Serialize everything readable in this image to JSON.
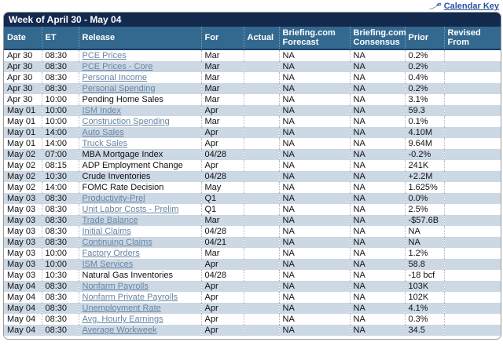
{
  "calendar_key": {
    "label": "Calendar Key"
  },
  "week_title": "Week of April 30 - May 04",
  "colors": {
    "title_bar": "#14294E",
    "header": "#33688F",
    "alt_row": "#CCD8E4",
    "link": "#6685A3",
    "key_link": "#2a52a2",
    "key_icon": "#2b59a8"
  },
  "columns": [
    {
      "key": "date",
      "label": "Date"
    },
    {
      "key": "et",
      "label": "ET"
    },
    {
      "key": "release",
      "label": "Release"
    },
    {
      "key": "for",
      "label": "For"
    },
    {
      "key": "actual",
      "label": "Actual"
    },
    {
      "key": "forecast",
      "label": "Briefing.com Forecast"
    },
    {
      "key": "consensus",
      "label": "Briefing.com Consensus"
    },
    {
      "key": "prior",
      "label": "Prior"
    },
    {
      "key": "revised",
      "label": "Revised From"
    }
  ],
  "rows": [
    {
      "date": "Apr 30",
      "et": "08:30",
      "release": "PCE Prices",
      "is_link": true,
      "for": "Mar",
      "actual": "",
      "forecast": "NA",
      "consensus": "NA",
      "prior": "0.2%",
      "revised": ""
    },
    {
      "date": "Apr 30",
      "et": "08:30",
      "release": "PCE Prices - Core",
      "is_link": true,
      "for": "Mar",
      "actual": "",
      "forecast": "NA",
      "consensus": "NA",
      "prior": "0.2%",
      "revised": ""
    },
    {
      "date": "Apr 30",
      "et": "08:30",
      "release": "Personal Income",
      "is_link": true,
      "for": "Mar",
      "actual": "",
      "forecast": "NA",
      "consensus": "NA",
      "prior": "0.4%",
      "revised": ""
    },
    {
      "date": "Apr 30",
      "et": "08:30",
      "release": "Personal Spending",
      "is_link": true,
      "for": "Mar",
      "actual": "",
      "forecast": "NA",
      "consensus": "NA",
      "prior": "0.2%",
      "revised": ""
    },
    {
      "date": "Apr 30",
      "et": "10:00",
      "release": "Pending Home Sales",
      "is_link": false,
      "for": "Mar",
      "actual": "",
      "forecast": "NA",
      "consensus": "NA",
      "prior": "3.1%",
      "revised": ""
    },
    {
      "date": "May 01",
      "et": "10:00",
      "release": "ISM Index",
      "is_link": true,
      "for": "Apr",
      "actual": "",
      "forecast": "NA",
      "consensus": "NA",
      "prior": "59.3",
      "revised": ""
    },
    {
      "date": "May 01",
      "et": "10:00",
      "release": "Construction Spending",
      "is_link": true,
      "for": "Mar",
      "actual": "",
      "forecast": "NA",
      "consensus": "NA",
      "prior": "0.1%",
      "revised": ""
    },
    {
      "date": "May 01",
      "et": "14:00",
      "release": "Auto Sales",
      "is_link": true,
      "for": "Apr",
      "actual": "",
      "forecast": "NA",
      "consensus": "NA",
      "prior": "4.10M",
      "revised": ""
    },
    {
      "date": "May 01",
      "et": "14:00",
      "release": "Truck Sales",
      "is_link": true,
      "for": "Apr",
      "actual": "",
      "forecast": "NA",
      "consensus": "NA",
      "prior": "9.64M",
      "revised": ""
    },
    {
      "date": "May 02",
      "et": "07:00",
      "release": "MBA Mortgage Index",
      "is_link": false,
      "for": "04/28",
      "actual": "",
      "forecast": "NA",
      "consensus": "NA",
      "prior": "-0.2%",
      "revised": ""
    },
    {
      "date": "May 02",
      "et": "08:15",
      "release": "ADP Employment Change",
      "is_link": false,
      "for": "Apr",
      "actual": "",
      "forecast": "NA",
      "consensus": "NA",
      "prior": "241K",
      "revised": ""
    },
    {
      "date": "May 02",
      "et": "10:30",
      "release": "Crude Inventories",
      "is_link": false,
      "for": "04/28",
      "actual": "",
      "forecast": "NA",
      "consensus": "NA",
      "prior": "+2.2M",
      "revised": ""
    },
    {
      "date": "May 02",
      "et": "14:00",
      "release": "FOMC Rate Decision",
      "is_link": false,
      "for": "May",
      "actual": "",
      "forecast": "NA",
      "consensus": "NA",
      "prior": "1.625%",
      "revised": ""
    },
    {
      "date": "May 03",
      "et": "08:30",
      "release": "Productivity-Prel",
      "is_link": true,
      "for": "Q1",
      "actual": "",
      "forecast": "NA",
      "consensus": "NA",
      "prior": "0.0%",
      "revised": ""
    },
    {
      "date": "May 03",
      "et": "08:30",
      "release": "Unit Labor Costs - Prelim",
      "is_link": true,
      "for": "Q1",
      "actual": "",
      "forecast": "NA",
      "consensus": "NA",
      "prior": "2.5%",
      "revised": ""
    },
    {
      "date": "May 03",
      "et": "08:30",
      "release": "Trade Balance",
      "is_link": true,
      "for": "Mar",
      "actual": "",
      "forecast": "NA",
      "consensus": "NA",
      "prior": "-$57.6B",
      "revised": ""
    },
    {
      "date": "May 03",
      "et": "08:30",
      "release": "Initial Claims",
      "is_link": true,
      "for": "04/28",
      "actual": "",
      "forecast": "NA",
      "consensus": "NA",
      "prior": "NA",
      "revised": ""
    },
    {
      "date": "May 03",
      "et": "08:30",
      "release": "Continuing Claims",
      "is_link": true,
      "for": "04/21",
      "actual": "",
      "forecast": "NA",
      "consensus": "NA",
      "prior": "NA",
      "revised": ""
    },
    {
      "date": "May 03",
      "et": "10:00",
      "release": "Factory Orders",
      "is_link": true,
      "for": "Mar",
      "actual": "",
      "forecast": "NA",
      "consensus": "NA",
      "prior": "1.2%",
      "revised": ""
    },
    {
      "date": "May 03",
      "et": "10:00",
      "release": "ISM Services",
      "is_link": true,
      "for": "Apr",
      "actual": "",
      "forecast": "NA",
      "consensus": "NA",
      "prior": "58.8",
      "revised": ""
    },
    {
      "date": "May 03",
      "et": "10:30",
      "release": "Natural Gas Inventories",
      "is_link": false,
      "for": "04/28",
      "actual": "",
      "forecast": "NA",
      "consensus": "NA",
      "prior": "-18 bcf",
      "revised": ""
    },
    {
      "date": "May 04",
      "et": "08:30",
      "release": "Nonfarm Payrolls",
      "is_link": true,
      "for": "Apr",
      "actual": "",
      "forecast": "NA",
      "consensus": "NA",
      "prior": "103K",
      "revised": ""
    },
    {
      "date": "May 04",
      "et": "08:30",
      "release": "Nonfarm Private Payrolls",
      "is_link": true,
      "for": "Apr",
      "actual": "",
      "forecast": "NA",
      "consensus": "NA",
      "prior": "102K",
      "revised": ""
    },
    {
      "date": "May 04",
      "et": "08:30",
      "release": "Unemployment Rate",
      "is_link": true,
      "for": "Apr",
      "actual": "",
      "forecast": "NA",
      "consensus": "NA",
      "prior": "4.1%",
      "revised": ""
    },
    {
      "date": "May 04",
      "et": "08:30",
      "release": "Avg. Hourly Earnings",
      "is_link": true,
      "for": "Apr",
      "actual": "",
      "forecast": "NA",
      "consensus": "NA",
      "prior": "0.3%",
      "revised": ""
    },
    {
      "date": "May 04",
      "et": "08:30",
      "release": "Average Workweek",
      "is_link": true,
      "for": "Apr",
      "actual": "",
      "forecast": "NA",
      "consensus": "NA",
      "prior": "34.5",
      "revised": ""
    }
  ]
}
